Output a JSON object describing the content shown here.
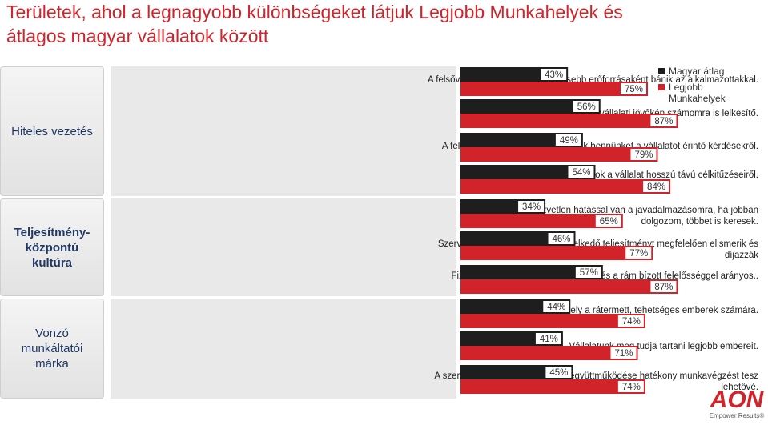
{
  "title": "Területek, ahol a legnagyobb különbségeket látjuk Legjobb Munkahelyek és átlagos magyar vállalatok között",
  "categories": [
    {
      "label": "Hiteles vezetés"
    },
    {
      "label": "Teljesítmény-központú kultúra"
    },
    {
      "label": "Vonzó munkáltatói márka"
    }
  ],
  "logo": {
    "text": "AON",
    "tagline": "Empower Results®"
  },
  "colors": {
    "title": "#d2232a",
    "avg": "#1e1e1e",
    "best": "#d2232a"
  },
  "chart_data": {
    "type": "bar",
    "orientation": "horizontal",
    "xlim": [
      0,
      100
    ],
    "categories": [
      "A felsővezetés a vállalat legértékesebb erőforrásaként bánik az alkalmazottakkal.",
      "A felsővezetés által mutatott vállalati jövőkép számomra is lelkesítő.",
      "A felsővezetők nyíltan tájékoztatnak bennünket a vállalatot érintő kérdésekről.",
      "Megfelelő tájékoztatást kapok a vállalat hosszú távú célkitűzéseiről.",
      "Teljesítményem közvetlen hatással van a javadalmazásomra, ha jobban dolgozom, többet is keresek.",
      "Szervezeti egységünkben a kiemelkedő teljesítményt megfelelően elismerik és díjazzák",
      "Fizetésem az elvégzett munkámmal és a rám bízott felelősséggel arányos..",
      "Vállalatunk vonzó munkahely a rátermett, tehetséges emberek számára.",
      "Vállalatunk meg tudja tartani legjobb embereit.",
      "A szervezeti egységek/osztályok együttműködése hatékony munkavégzést tesz lehetővé."
    ],
    "series": [
      {
        "name": "Magyar átlag",
        "values": [
          43,
          56,
          49,
          54,
          34,
          46,
          57,
          44,
          41,
          45
        ]
      },
      {
        "name": "Legjobb Munkahelyek",
        "values": [
          75,
          87,
          79,
          84,
          65,
          77,
          87,
          74,
          71,
          74
        ]
      }
    ],
    "value_labels": {
      "avg": [
        "43%",
        "56%",
        "49%",
        "54%",
        "34%",
        "46%",
        "57%",
        "44%",
        "41%",
        "45%"
      ],
      "best": [
        "75%",
        "87%",
        "79%",
        "84%",
        "65%",
        "77%",
        "87%",
        "74%",
        "71%",
        "74%"
      ]
    },
    "legend_position": "top-right"
  }
}
